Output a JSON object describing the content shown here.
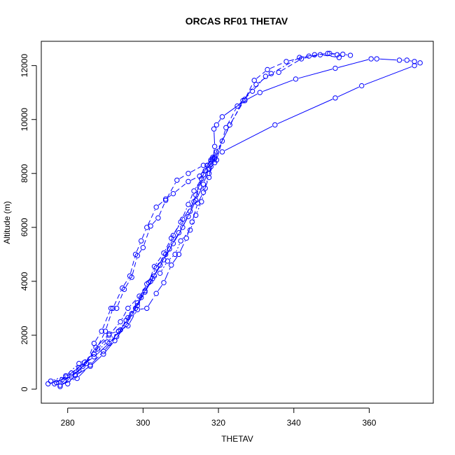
{
  "chart_data": {
    "type": "line",
    "title": "ORCAS RF01 THETAV",
    "xlabel": "THETAV",
    "ylabel": "Altitude (m)",
    "xlim": [
      273,
      377
    ],
    "ylim": [
      -520,
      12900
    ],
    "xticks": [
      "280",
      "300",
      "320",
      "340",
      "360"
    ],
    "yticks": [
      "0",
      "2000",
      "4000",
      "6000",
      "8000",
      "10000",
      "12000"
    ],
    "grid": false,
    "legend": "none",
    "color": "#0000ff",
    "marker": "open-circle",
    "series": [
      {
        "line_style": "solid",
        "points": [
          [
            274.8,
            200
          ],
          [
            278.5,
            350
          ],
          [
            282,
            500
          ],
          [
            286,
            850
          ],
          [
            289.5,
            1300
          ],
          [
            292.5,
            1800
          ],
          [
            295.5,
            2400
          ],
          [
            298,
            3000
          ],
          [
            300.5,
            3600
          ],
          [
            303,
            4200
          ],
          [
            305.5,
            4800
          ],
          [
            308,
            5400
          ],
          [
            310.5,
            6000
          ],
          [
            312.5,
            6600
          ],
          [
            314,
            7200
          ],
          [
            315.5,
            7800
          ],
          [
            317,
            8300
          ],
          [
            318.5,
            8600
          ],
          [
            319.5,
            8800
          ],
          [
            321,
            8800
          ],
          [
            335,
            9800
          ],
          [
            351,
            10800
          ],
          [
            358,
            11250
          ],
          [
            372,
            12000
          ],
          [
            373.5,
            12100
          ]
        ]
      },
      {
        "line_style": "solid",
        "points": [
          [
            276.5,
            200
          ],
          [
            279.5,
            450
          ],
          [
            283,
            800
          ],
          [
            287,
            1200
          ],
          [
            291,
            1700
          ],
          [
            294,
            2200
          ],
          [
            297,
            2800
          ],
          [
            299.5,
            3400
          ],
          [
            302,
            4000
          ],
          [
            304.5,
            4600
          ],
          [
            307,
            5200
          ],
          [
            309.5,
            5800
          ],
          [
            312,
            6400
          ],
          [
            314,
            7000
          ],
          [
            316,
            7600
          ],
          [
            317.5,
            8200
          ],
          [
            318.5,
            8500
          ],
          [
            319,
            9000
          ],
          [
            318.8,
            9650
          ],
          [
            319.5,
            9800
          ],
          [
            321,
            10100
          ],
          [
            327,
            10700
          ],
          [
            331,
            11000
          ],
          [
            340.5,
            11500
          ],
          [
            351,
            11900
          ],
          [
            360.5,
            12250
          ],
          [
            362,
            12250
          ],
          [
            368,
            12200
          ],
          [
            370,
            12200
          ],
          [
            372,
            12150
          ]
        ]
      },
      {
        "line_style": "dashed",
        "points": [
          [
            279,
            300
          ],
          [
            283,
            700
          ],
          [
            287,
            1300
          ],
          [
            290,
            2150
          ],
          [
            292,
            3000
          ],
          [
            294.5,
            3750
          ],
          [
            296.5,
            4200
          ],
          [
            298,
            5000
          ],
          [
            299.5,
            5500
          ],
          [
            301,
            6000
          ],
          [
            303.5,
            6750
          ],
          [
            306,
            7050
          ],
          [
            308,
            7250
          ],
          [
            312,
            7700
          ],
          [
            315,
            7900
          ],
          [
            318,
            8500
          ],
          [
            319,
            8550
          ],
          [
            321,
            9200
          ],
          [
            323,
            9800
          ],
          [
            327,
            10750
          ],
          [
            329.5,
            11450
          ],
          [
            333,
            11850
          ],
          [
            338,
            12150
          ],
          [
            344,
            12350
          ],
          [
            349,
            12450
          ],
          [
            353,
            12420
          ],
          [
            355,
            12380
          ]
        ]
      },
      {
        "line_style": "dashed",
        "points": [
          [
            280,
            200
          ],
          [
            282,
            550
          ],
          [
            285,
            950
          ],
          [
            287,
            1700
          ],
          [
            289,
            2150
          ],
          [
            291.5,
            3000
          ],
          [
            293,
            3000
          ],
          [
            295,
            3700
          ],
          [
            297,
            4150
          ],
          [
            298.5,
            4950
          ],
          [
            300,
            5250
          ],
          [
            302,
            6050
          ],
          [
            304,
            6350
          ],
          [
            306,
            7000
          ],
          [
            309,
            7750
          ],
          [
            312,
            8000
          ],
          [
            316,
            8300
          ],
          [
            318,
            8450
          ],
          [
            319.5,
            8500
          ],
          [
            322,
            9700
          ],
          [
            325,
            10500
          ],
          [
            329,
            11050
          ],
          [
            332.5,
            11600
          ],
          [
            336,
            11750
          ],
          [
            342,
            12250
          ],
          [
            347,
            12400
          ],
          [
            352,
            12300
          ]
        ]
      },
      {
        "line_style": "dashdot",
        "points": [
          [
            277,
            250
          ],
          [
            281,
            600
          ],
          [
            284.5,
            1000
          ],
          [
            288,
            1500
          ],
          [
            291,
            2000
          ],
          [
            294,
            2500
          ],
          [
            296,
            3000
          ],
          [
            299,
            3450
          ],
          [
            301.5,
            3950
          ],
          [
            303,
            4550
          ],
          [
            305.5,
            5050
          ],
          [
            307.5,
            5600
          ],
          [
            310,
            6200
          ],
          [
            312,
            6850
          ],
          [
            313.5,
            7350
          ],
          [
            315.5,
            7800
          ],
          [
            316.5,
            8100
          ],
          [
            318,
            8350
          ],
          [
            318.5,
            8550
          ],
          [
            326.5,
            10700
          ],
          [
            330,
            11300
          ],
          [
            334,
            11700
          ],
          [
            341.5,
            12300
          ],
          [
            345.5,
            12400
          ],
          [
            349.5,
            12450
          ],
          [
            351.5,
            12400
          ]
        ]
      },
      {
        "line_style": "longdash",
        "points": [
          [
            278,
            150
          ],
          [
            282.5,
            400
          ],
          [
            286,
            900
          ],
          [
            289.5,
            1400
          ],
          [
            293,
            1950
          ],
          [
            295.5,
            2550
          ],
          [
            298.5,
            3200
          ],
          [
            301,
            3900
          ],
          [
            303.5,
            4500
          ],
          [
            306,
            5000
          ],
          [
            308,
            5700
          ],
          [
            310.5,
            6300
          ],
          [
            313.5,
            6950
          ],
          [
            315,
            7500
          ],
          [
            316,
            7950
          ],
          [
            317.5,
            8150
          ],
          [
            319,
            8400
          ]
        ]
      },
      {
        "line_style": "longdash",
        "points": [
          [
            278,
            100
          ],
          [
            281,
            450
          ],
          [
            284,
            850
          ],
          [
            287.5,
            1550
          ],
          [
            291,
            2050
          ],
          [
            293.5,
            2150
          ],
          [
            296,
            2350
          ],
          [
            298.5,
            2950
          ],
          [
            301,
            3000
          ],
          [
            303.5,
            3550
          ],
          [
            305.5,
            3950
          ],
          [
            307.5,
            4600
          ],
          [
            309.5,
            5000
          ],
          [
            311.5,
            5600
          ],
          [
            313,
            6200
          ],
          [
            314.5,
            6900
          ],
          [
            316,
            7300
          ],
          [
            317.5,
            7850
          ],
          [
            318,
            8250
          ]
        ]
      },
      {
        "line_style": "dotted",
        "points": [
          [
            275.5,
            300
          ],
          [
            279.5,
            500
          ],
          [
            283,
            950
          ],
          [
            287,
            1300
          ],
          [
            290.5,
            1750
          ],
          [
            293.5,
            2150
          ],
          [
            296,
            2650
          ],
          [
            298.5,
            3100
          ],
          [
            300.5,
            3650
          ],
          [
            302.5,
            4100
          ],
          [
            304.5,
            4300
          ],
          [
            306.5,
            4750
          ],
          [
            308.5,
            5000
          ],
          [
            310,
            5500
          ],
          [
            312.5,
            5900
          ],
          [
            314,
            6450
          ],
          [
            315.5,
            6950
          ],
          [
            316.5,
            7450
          ],
          [
            317.5,
            8000
          ],
          [
            319,
            8600
          ]
        ]
      }
    ]
  }
}
